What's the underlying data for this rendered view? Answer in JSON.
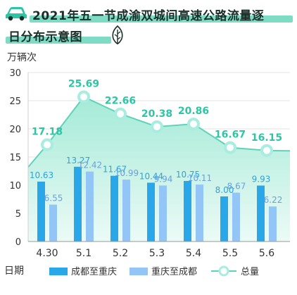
{
  "title": {
    "line1": "2021年五一节成渝双城间高速公路流量逐",
    "line2": "日分布示意图"
  },
  "icons": {
    "car": "car-icon",
    "leaf": "leaf-icon"
  },
  "colors": {
    "series1": "#2aa7e8",
    "series2": "#93c6f6",
    "line": "#5fd3ba",
    "area": "#bdf0e2",
    "label_line": "#2ec5a4",
    "grid": "#e3e3e3",
    "highlight": "#7fdcc4"
  },
  "chart_data": {
    "type": "bar",
    "ylabel": "万辆次",
    "xlabel": "日期",
    "ylim": [
      0,
      30
    ],
    "yticks": [
      0,
      5,
      10,
      15,
      20,
      25,
      30
    ],
    "categories": [
      "4.30",
      "5.1",
      "5.2",
      "5.3",
      "5.4",
      "5.5",
      "5.6"
    ],
    "series": [
      {
        "name": "成都至重庆",
        "type": "bar",
        "values": [
          10.63,
          13.27,
          11.67,
          10.44,
          10.75,
          8.0,
          9.93
        ]
      },
      {
        "name": "重庆至成都",
        "type": "bar",
        "values": [
          6.55,
          12.42,
          10.99,
          9.94,
          10.11,
          8.67,
          6.22
        ]
      },
      {
        "name": "总量",
        "type": "area-line",
        "values": [
          17.18,
          25.69,
          22.66,
          20.38,
          20.86,
          16.67,
          16.15
        ]
      }
    ],
    "line_labels": [
      "17.18",
      "25.69",
      "22.66",
      "20.38",
      "20.86",
      "16.67",
      "16.15"
    ],
    "bar1_labels": [
      "10.63",
      "13.27",
      "11.67",
      "10.44",
      "10.75",
      "8.00",
      "9.93"
    ],
    "bar2_labels": [
      "6.55",
      "12.42",
      "10.99",
      "9.94",
      "10.11",
      "8.67",
      "6.22"
    ],
    "legend_position": "bottom",
    "grid": true
  }
}
